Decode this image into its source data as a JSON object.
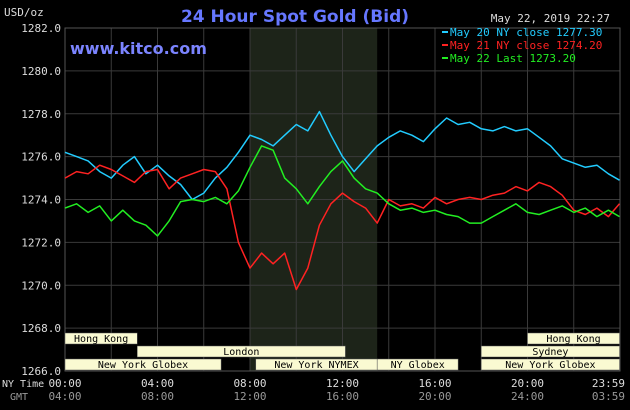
{
  "header": {
    "ylabel": "USD/oz",
    "title": "24 Hour Spot Gold (Bid)",
    "timestamp": "May 22, 2019 22:27",
    "site": "www.kitco.com"
  },
  "colors": {
    "background": "#000000",
    "grid": "#3a3a3a",
    "highlight": "#1d2419",
    "axis_text": "#dddddd",
    "title": "#6677ff",
    "site": "#7b84ff",
    "session_fill": "#fafad2",
    "session_text": "#000000"
  },
  "axis_labels": {
    "ny_time": "NY Time",
    "gmt": "GMT"
  },
  "sessions": [
    {
      "name": "Hong Kong",
      "start": 0.0,
      "end": 3.125,
      "row": 0
    },
    {
      "name": "London",
      "start": 3.125,
      "end": 12.125,
      "row": 1
    },
    {
      "name": "New York Globex",
      "start": 0.0,
      "end": 6.75,
      "row": 2
    },
    {
      "name": "New York NYMEX",
      "start": 8.25,
      "end": 13.5,
      "row": 2
    },
    {
      "name": "NY Globex",
      "start": 13.5,
      "end": 17.0,
      "row": 2
    },
    {
      "name": "Hong Kong",
      "start": 20.0,
      "end": 23.98,
      "row": 0
    },
    {
      "name": "Sydney",
      "start": 18.0,
      "end": 23.98,
      "row": 1
    },
    {
      "name": "New York Globex",
      "start": 18.0,
      "end": 23.98,
      "row": 2
    }
  ],
  "chart_data": {
    "type": "line",
    "title": "24 Hour Spot Gold (Bid)",
    "ylabel": "USD/oz",
    "xlim": [
      0,
      24
    ],
    "ylim": [
      1266,
      1282
    ],
    "yticks": [
      "1266.0",
      "1268.0",
      "1270.0",
      "1272.0",
      "1274.0",
      "1276.0",
      "1278.0",
      "1280.0",
      "1282.0"
    ],
    "xticks_ny": [
      "00:00",
      "04:00",
      "08:00",
      "12:00",
      "16:00",
      "20:00",
      "23:59"
    ],
    "xticks_gmt": [
      "04:00",
      "08:00",
      "12:00",
      "16:00",
      "20:00",
      "24:00",
      "03:59"
    ],
    "grid": true,
    "highlight": [
      8.0,
      13.5
    ],
    "legend_position": "top-right",
    "series": [
      {
        "name": "May 20 NY close 1277.30",
        "color": "#22ccff",
        "x": [
          0,
          0.5,
          1,
          1.5,
          2,
          2.5,
          3,
          3.5,
          4,
          4.5,
          5,
          5.5,
          6,
          6.5,
          7,
          7.5,
          8,
          8.5,
          9,
          9.5,
          10,
          10.5,
          11,
          11.5,
          12,
          12.5,
          13,
          13.5,
          14,
          14.5,
          15,
          15.5,
          16,
          16.5,
          17,
          17.5,
          18,
          18.5,
          19,
          19.5,
          20,
          20.5,
          21,
          21.5,
          22,
          22.5,
          23,
          23.5,
          23.98
        ],
        "y": [
          1276.2,
          1276.0,
          1275.8,
          1275.3,
          1275.0,
          1275.6,
          1276.0,
          1275.2,
          1275.6,
          1275.1,
          1274.7,
          1274.0,
          1274.3,
          1275.0,
          1275.5,
          1276.2,
          1277.0,
          1276.8,
          1276.5,
          1277.0,
          1277.5,
          1277.2,
          1278.1,
          1277.0,
          1276.0,
          1275.3,
          1275.9,
          1276.5,
          1276.9,
          1277.2,
          1277.0,
          1276.7,
          1277.3,
          1277.8,
          1277.5,
          1277.6,
          1277.3,
          1277.2,
          1277.4,
          1277.2,
          1277.3,
          1276.9,
          1276.5,
          1275.9,
          1275.7,
          1275.5,
          1275.6,
          1275.2,
          1274.9
        ]
      },
      {
        "name": "May 21 NY close 1274.20",
        "color": "#ff2222",
        "x": [
          0,
          0.5,
          1,
          1.5,
          2,
          2.5,
          3,
          3.5,
          4,
          4.5,
          5,
          5.5,
          6,
          6.5,
          7,
          7.5,
          8,
          8.5,
          9,
          9.5,
          10,
          10.5,
          11,
          11.5,
          12,
          12.5,
          13,
          13.5,
          14,
          14.5,
          15,
          15.5,
          16,
          16.5,
          17,
          17.5,
          18,
          18.5,
          19,
          19.5,
          20,
          20.5,
          21,
          21.5,
          22,
          22.5,
          23,
          23.5,
          23.98
        ],
        "y": [
          1275.0,
          1275.3,
          1275.2,
          1275.6,
          1275.4,
          1275.1,
          1274.8,
          1275.3,
          1275.4,
          1274.5,
          1275.0,
          1275.2,
          1275.4,
          1275.3,
          1274.5,
          1272.0,
          1270.8,
          1271.5,
          1271.0,
          1271.5,
          1269.8,
          1270.8,
          1272.8,
          1273.8,
          1274.3,
          1273.9,
          1273.6,
          1272.9,
          1274.0,
          1273.7,
          1273.8,
          1273.6,
          1274.1,
          1273.8,
          1274.0,
          1274.1,
          1274.0,
          1274.2,
          1274.3,
          1274.6,
          1274.4,
          1274.8,
          1274.6,
          1274.2,
          1273.5,
          1273.3,
          1273.6,
          1273.2,
          1273.8
        ]
      },
      {
        "name": "May 22 Last 1273.20",
        "color": "#22ee22",
        "x": [
          0,
          0.5,
          1,
          1.5,
          2,
          2.5,
          3,
          3.5,
          4,
          4.5,
          5,
          5.5,
          6,
          6.5,
          7,
          7.5,
          8,
          8.5,
          9,
          9.5,
          10,
          10.5,
          11,
          11.5,
          12,
          12.5,
          13,
          13.5,
          14,
          14.5,
          15,
          15.5,
          16,
          16.5,
          17,
          17.5,
          18,
          18.5,
          19,
          19.5,
          20,
          20.5,
          21,
          21.5,
          22,
          22.5,
          23,
          23.5,
          23.98
        ],
        "y": [
          1273.6,
          1273.8,
          1273.4,
          1273.7,
          1273.0,
          1273.5,
          1273.0,
          1272.8,
          1272.3,
          1273.0,
          1273.9,
          1274.0,
          1273.9,
          1274.1,
          1273.8,
          1274.4,
          1275.5,
          1276.5,
          1276.3,
          1275.0,
          1274.5,
          1273.8,
          1274.6,
          1275.3,
          1275.8,
          1275.0,
          1274.5,
          1274.3,
          1273.8,
          1273.5,
          1273.6,
          1273.4,
          1273.5,
          1273.3,
          1273.2,
          1272.9,
          1272.9,
          1273.2,
          1273.5,
          1273.8,
          1273.4,
          1273.3,
          1273.5,
          1273.7,
          1273.4,
          1273.6,
          1273.2,
          1273.5,
          1273.2
        ]
      }
    ]
  }
}
